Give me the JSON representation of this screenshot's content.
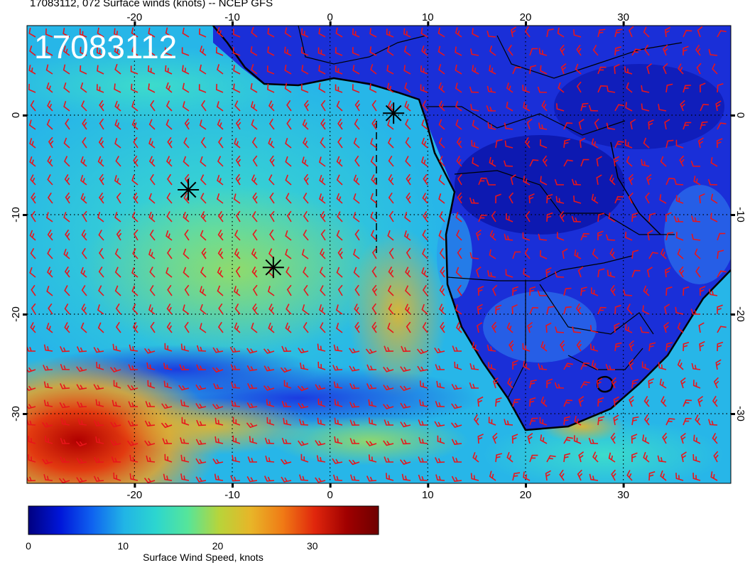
{
  "title": "17083112, 072 Surface winds (knots) -- NCEP GFS",
  "stamp": "17083112",
  "map": {
    "lon_ticks": [
      "-20",
      "-10",
      "0",
      "10",
      "20",
      "30"
    ],
    "lat_ticks": [
      "0",
      "-10",
      "-20",
      "-30"
    ],
    "lon_values": [
      -20,
      -10,
      0,
      10,
      20,
      30
    ],
    "lat_values": [
      0,
      -10,
      -20,
      -30
    ],
    "lon_range": [
      -31,
      41
    ],
    "lat_range": [
      -37,
      9
    ],
    "markers": [
      {
        "lon": 6.5,
        "lat": 0.2
      },
      {
        "lon": -14.5,
        "lat": -7.5
      },
      {
        "lon": -5.8,
        "lat": -15.3
      }
    ],
    "barb_color": "#e8151b",
    "coast_color": "#000000"
  },
  "colorbar": {
    "label": "Surface Wind Speed, knots",
    "ticks": [
      "0",
      "10",
      "20",
      "30"
    ],
    "tick_values": [
      0,
      10,
      20,
      30
    ],
    "min": 0,
    "max": 37,
    "colors": [
      "#000080",
      "#0016d9",
      "#0f63f0",
      "#21b4e6",
      "#2cd6cf",
      "#56e59a",
      "#b8d43a",
      "#e8b528",
      "#f07a15",
      "#e0260c",
      "#a00000",
      "#6e0000"
    ]
  }
}
